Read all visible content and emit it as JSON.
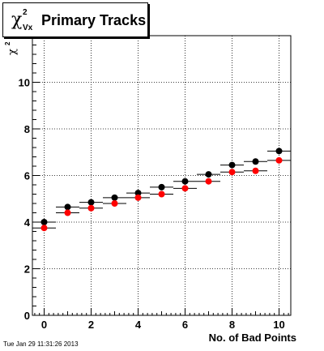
{
  "title": {
    "chi_symbol": "χ",
    "superscript": "2",
    "subscript": "Vx",
    "text": "Primary Tracks"
  },
  "timestamp": "Tue Jan 29 11:31:26 2013",
  "chart_data": {
    "type": "scatter",
    "title": "χ²_Vx Primary Tracks",
    "xlabel": "No. of Bad Points",
    "ylabel": "χ²",
    "xlim": [
      -0.5,
      10.5
    ],
    "ylim": [
      0,
      12
    ],
    "grid": true,
    "x_ticks": [
      0,
      2,
      4,
      6,
      8,
      10
    ],
    "y_ticks": [
      0,
      2,
      4,
      6,
      8,
      10
    ],
    "x": [
      0,
      1,
      2,
      3,
      4,
      5,
      6,
      7,
      8,
      9,
      10
    ],
    "x_error": 0.5,
    "series": [
      {
        "color": "#000000",
        "values": [
          4.0,
          4.65,
          4.85,
          5.05,
          5.25,
          5.5,
          5.75,
          6.05,
          6.45,
          6.6,
          7.05
        ]
      },
      {
        "color": "#ff0000",
        "values": [
          3.75,
          4.4,
          4.6,
          4.8,
          5.05,
          5.2,
          5.45,
          5.75,
          6.15,
          6.2,
          6.65
        ]
      }
    ]
  }
}
